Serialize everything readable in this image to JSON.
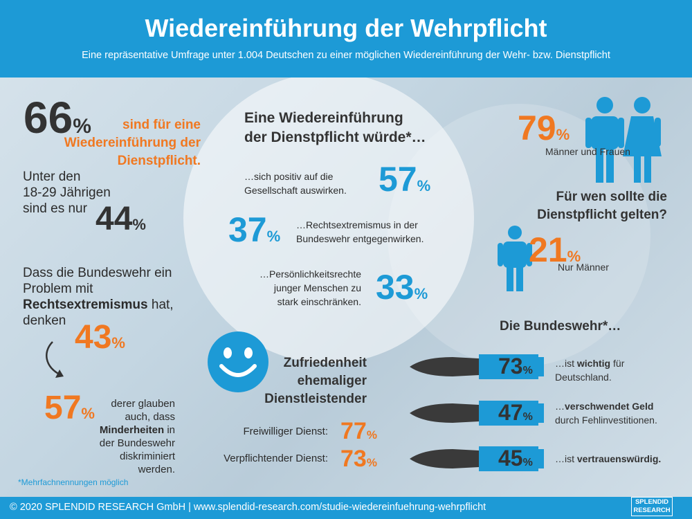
{
  "header": {
    "title": "Wiedereinführung der Wehrpflicht",
    "subtitle": "Eine repräsentative Umfrage unter 1.004 Deutschen zu einer möglichen Wiedereinführung der Wehr- bzw. Dienstpflicht"
  },
  "left": {
    "main_number": "66",
    "main_percent": "%",
    "main_text_1": "sind für eine",
    "main_text_2": "Wiedereinführung der",
    "main_text_3": "Dienstpflicht.",
    "young_text_1": "Unter den",
    "young_text_2": "18-29 Jährigen",
    "young_text_3": "sind es nur",
    "young_number": "44",
    "young_percent": "%",
    "problem_text_1": "Dass die Bundeswehr ein",
    "problem_text_2": "Problem mit",
    "problem_text_3": "Rechtsextremismus",
    "problem_text_3b": " hat,",
    "problem_text_4": "denken",
    "problem_number": "43",
    "problem_percent": "%",
    "minority_number": "57",
    "minority_percent": "%",
    "minority_text_1": "derer glauben",
    "minority_text_2": "auch, dass",
    "minority_text_3": "Minderheiten",
    "minority_text_3b": " in",
    "minority_text_4": "der Bundeswehr",
    "minority_text_5": "diskriminiert werden.",
    "footnote": "*Mehrfachnennungen möglich"
  },
  "center": {
    "heading_1": "Eine Wiedereinführung",
    "heading_2": "der Dienstpflicht würde*…",
    "item1_text_1": "…sich positiv auf die",
    "item1_text_2": "Gesellschaft auswirken.",
    "item1_number": "57",
    "item1_percent": "%",
    "item2_number": "37",
    "item2_percent": "%",
    "item2_text_1": "…Rechtsextremismus in der",
    "item2_text_2": "Bundeswehr entgegenwirken.",
    "item3_text_1": "…Persönlichkeitsrechte",
    "item3_text_2": "junger Menschen zu",
    "item3_text_3": "stark einschränken.",
    "item3_number": "33",
    "item3_percent": "%",
    "satisfaction_1": "Zufriedenheit",
    "satisfaction_2": "ehemaliger",
    "satisfaction_3": "Dienstleistender",
    "voluntary_label": "Freiwilliger Dienst:",
    "voluntary_number": "77",
    "voluntary_percent": "%",
    "mandatory_label": "Verpflichtender Dienst:",
    "mandatory_number": "73",
    "mandatory_percent": "%"
  },
  "right": {
    "all_number": "79",
    "all_percent": "%",
    "all_label": "Männer und Frauen",
    "question_1": "Für wen sollte die",
    "question_2": "Dienstpflicht gelten?",
    "men_number": "21",
    "men_percent": "%",
    "men_label": "Nur Männer",
    "bw_heading": "Die Bundeswehr*…",
    "bullets": [
      {
        "number": "73",
        "percent": "%",
        "text_1": "…ist ",
        "text_bold": "wichtig",
        "text_2": " für",
        "text_3": "Deutschland."
      },
      {
        "number": "47",
        "percent": "%",
        "text_1": "…",
        "text_bold": "verschwendet Geld",
        "text_2": "",
        "text_3": "durch Fehlinvestitionen."
      },
      {
        "number": "45",
        "percent": "%",
        "text_1": "…ist ",
        "text_bold": "vertrauenswürdig.",
        "text_2": "",
        "text_3": ""
      }
    ]
  },
  "footer": {
    "text": "© 2020 SPLENDID RESEARCH GmbH | www.splendid-research.com/studie-wiedereinfuehrung-wehrpflicht",
    "logo_1": "SPLENDID",
    "logo_2": "RESEARCH"
  },
  "colors": {
    "accent_blue": "#1d9ad6",
    "accent_orange": "#f07821",
    "dark_text": "#333333",
    "bullet_tip": "#3a3a3a"
  }
}
